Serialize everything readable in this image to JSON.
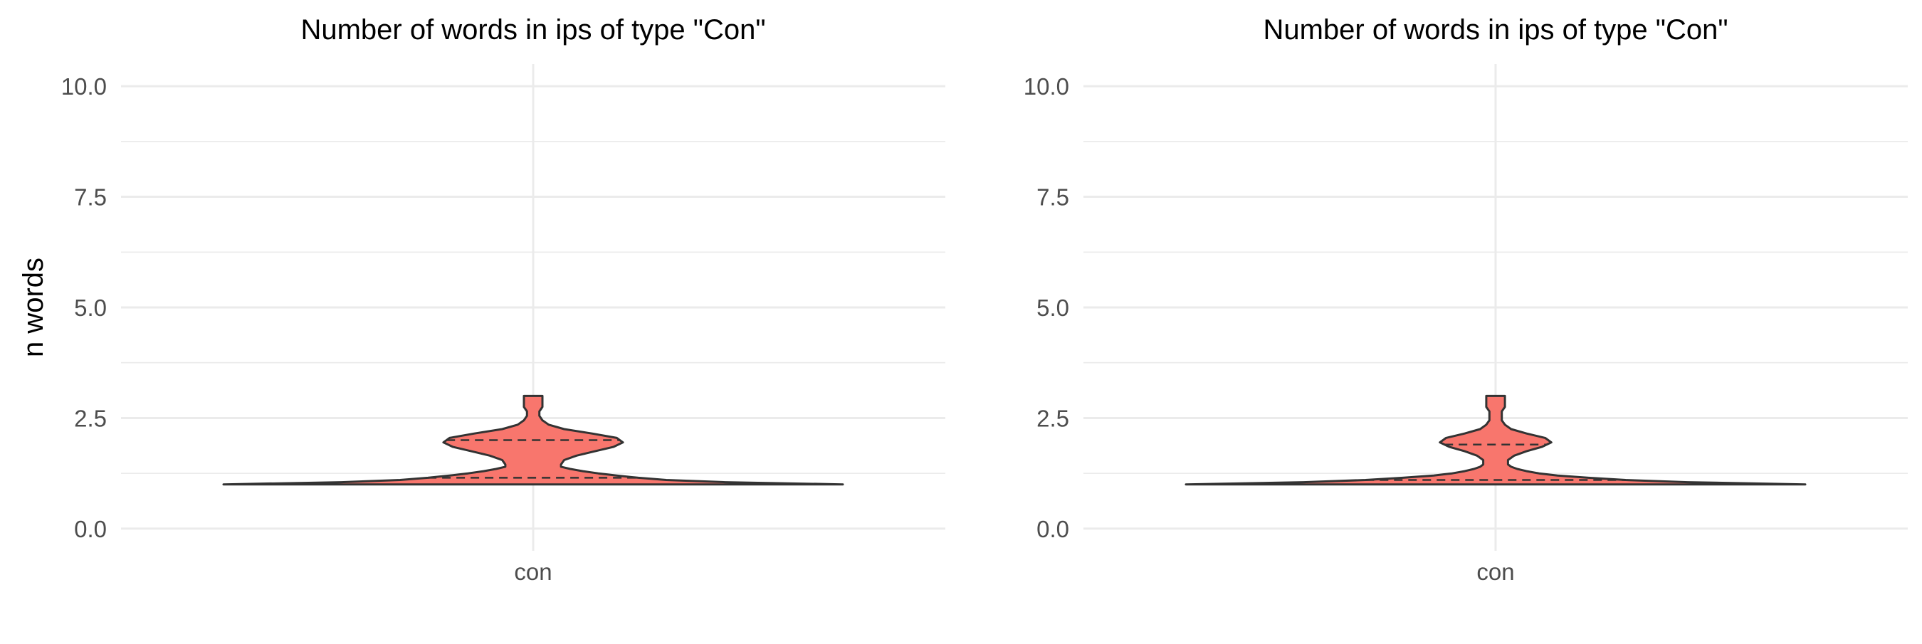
{
  "colors": {
    "fill": "#F8766D",
    "outline": "#333333",
    "grid": "#EBEBEB",
    "axis_text": "#4D4D4D",
    "title": "#000000"
  },
  "chart_data": [
    {
      "type": "violin",
      "title": "Number of words in ips of type \"Con\"",
      "xlabel": "",
      "ylabel": "n words",
      "categories": [
        "con"
      ],
      "ylim": [
        -0.5,
        10.5
      ],
      "yticks": [
        "0.0",
        "2.5",
        "5.0",
        "7.5",
        "10.0"
      ],
      "yticks_values": [
        0,
        2.5,
        5,
        7.5,
        10
      ],
      "grid": true,
      "density": [
        [
          1.0,
          1.0
        ],
        [
          1.05,
          0.62
        ],
        [
          1.1,
          0.43
        ],
        [
          1.15,
          0.34
        ],
        [
          1.2,
          0.27
        ],
        [
          1.25,
          0.21
        ],
        [
          1.3,
          0.16
        ],
        [
          1.35,
          0.12
        ],
        [
          1.4,
          0.09
        ],
        [
          1.45,
          0.09
        ],
        [
          1.55,
          0.1
        ],
        [
          1.65,
          0.14
        ],
        [
          1.75,
          0.2
        ],
        [
          1.85,
          0.26
        ],
        [
          1.95,
          0.29
        ],
        [
          2.05,
          0.27
        ],
        [
          2.15,
          0.19
        ],
        [
          2.25,
          0.1
        ],
        [
          2.35,
          0.05
        ],
        [
          2.45,
          0.03
        ],
        [
          2.55,
          0.02
        ],
        [
          2.65,
          0.02
        ],
        [
          2.75,
          0.03
        ],
        [
          2.85,
          0.03
        ],
        [
          3.0,
          0.03
        ]
      ],
      "quantiles": [
        1.15,
        2.0
      ]
    },
    {
      "type": "violin",
      "title": "Number of words in ips of type \"Con\"",
      "xlabel": "",
      "ylabel": "",
      "categories": [
        "con"
      ],
      "ylim": [
        -0.5,
        10.5
      ],
      "yticks": [
        "0.0",
        "2.5",
        "5.0",
        "7.5",
        "10.0"
      ],
      "yticks_values": [
        0,
        2.5,
        5,
        7.5,
        10
      ],
      "grid": true,
      "density": [
        [
          1.0,
          1.0
        ],
        [
          1.05,
          0.62
        ],
        [
          1.1,
          0.42
        ],
        [
          1.15,
          0.3
        ],
        [
          1.2,
          0.2
        ],
        [
          1.25,
          0.14
        ],
        [
          1.3,
          0.1
        ],
        [
          1.35,
          0.07
        ],
        [
          1.4,
          0.05
        ],
        [
          1.45,
          0.04
        ],
        [
          1.55,
          0.04
        ],
        [
          1.65,
          0.06
        ],
        [
          1.75,
          0.1
        ],
        [
          1.85,
          0.15
        ],
        [
          1.95,
          0.18
        ],
        [
          2.05,
          0.16
        ],
        [
          2.15,
          0.1
        ],
        [
          2.25,
          0.05
        ],
        [
          2.35,
          0.03
        ],
        [
          2.45,
          0.02
        ],
        [
          2.55,
          0.02
        ],
        [
          2.65,
          0.02
        ],
        [
          2.75,
          0.03
        ],
        [
          2.85,
          0.03
        ],
        [
          3.0,
          0.03
        ]
      ],
      "quantiles": [
        1.1,
        1.9
      ]
    }
  ]
}
